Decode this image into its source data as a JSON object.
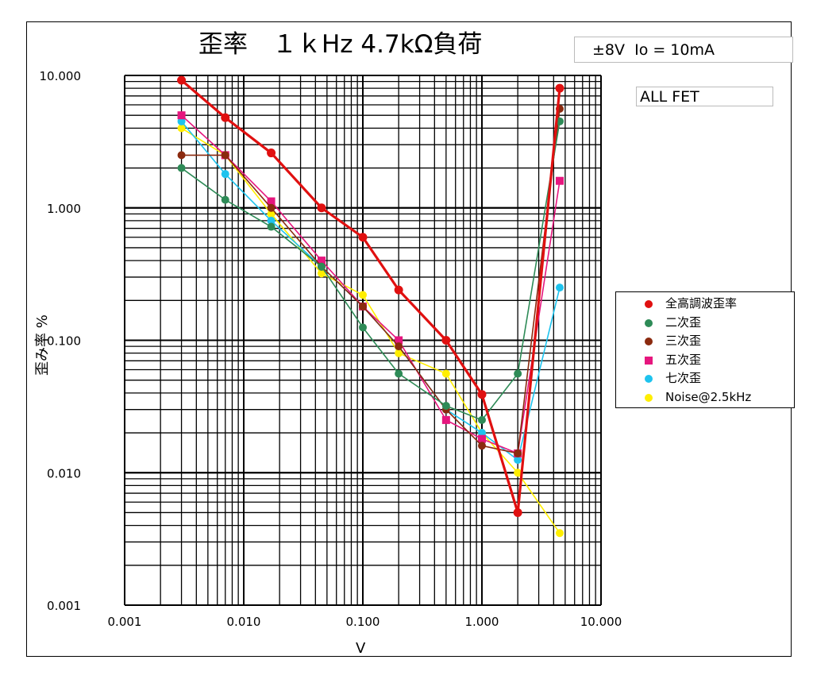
{
  "title": "歪率　１ｋHz 4.7kΩ負荷",
  "condition_label": "±8V  Io = 10mA",
  "device_label": "ALL FET",
  "chart_data": {
    "type": "line",
    "title": "歪率　１ｋHz 4.7kΩ負荷",
    "xlabel": "V",
    "ylabel": "歪み率 %",
    "xscale": "log",
    "yscale": "log",
    "xlim": [
      0.001,
      10
    ],
    "ylim": [
      0.001,
      10
    ],
    "x_tick_labels": [
      "0.001",
      "0.010",
      "0.100",
      "1.000",
      "10.000"
    ],
    "y_tick_labels": [
      "10.000",
      "1.000",
      "0.100",
      "0.010",
      "0.001"
    ],
    "grid": true,
    "legend_position": "right",
    "x": [
      0.003,
      0.007,
      0.017,
      0.045,
      0.1,
      0.2,
      0.5,
      1.0,
      2.0,
      4.5
    ],
    "series": [
      {
        "name": "全高調波歪率",
        "color": "#e01010",
        "marker": "circle",
        "values": [
          9.2,
          4.8,
          2.6,
          1.0,
          0.6,
          0.24,
          0.1,
          0.039,
          0.005,
          8.0
        ]
      },
      {
        "name": "二次歪",
        "color": "#2e8b57",
        "marker": "circle",
        "values": [
          2.0,
          1.15,
          0.72,
          0.36,
          0.125,
          0.056,
          0.032,
          0.025,
          0.056,
          4.5
        ]
      },
      {
        "name": "三次歪",
        "color": "#8b2a0f",
        "marker": "circle",
        "values": [
          2.5,
          2.5,
          1.0,
          0.36,
          0.18,
          0.09,
          0.03,
          0.016,
          0.014,
          5.6
        ]
      },
      {
        "name": "五次歪",
        "color": "#e6167e",
        "marker": "square",
        "values": [
          5.0,
          2.5,
          1.12,
          0.4,
          0.18,
          0.1,
          0.025,
          0.018,
          0.014,
          1.6
        ]
      },
      {
        "name": "七次歪",
        "color": "#1ec3ee",
        "marker": "circle",
        "values": [
          4.5,
          1.8,
          0.8,
          0.36,
          0.18,
          0.09,
          0.03,
          0.02,
          0.0125,
          0.25
        ]
      },
      {
        "name": "Noise@2.5kHz",
        "color": "#ffee00",
        "marker": "circle",
        "values": [
          4.0,
          2.5,
          0.9,
          0.32,
          0.22,
          0.08,
          0.056,
          0.02,
          0.01,
          0.0035
        ]
      }
    ]
  }
}
